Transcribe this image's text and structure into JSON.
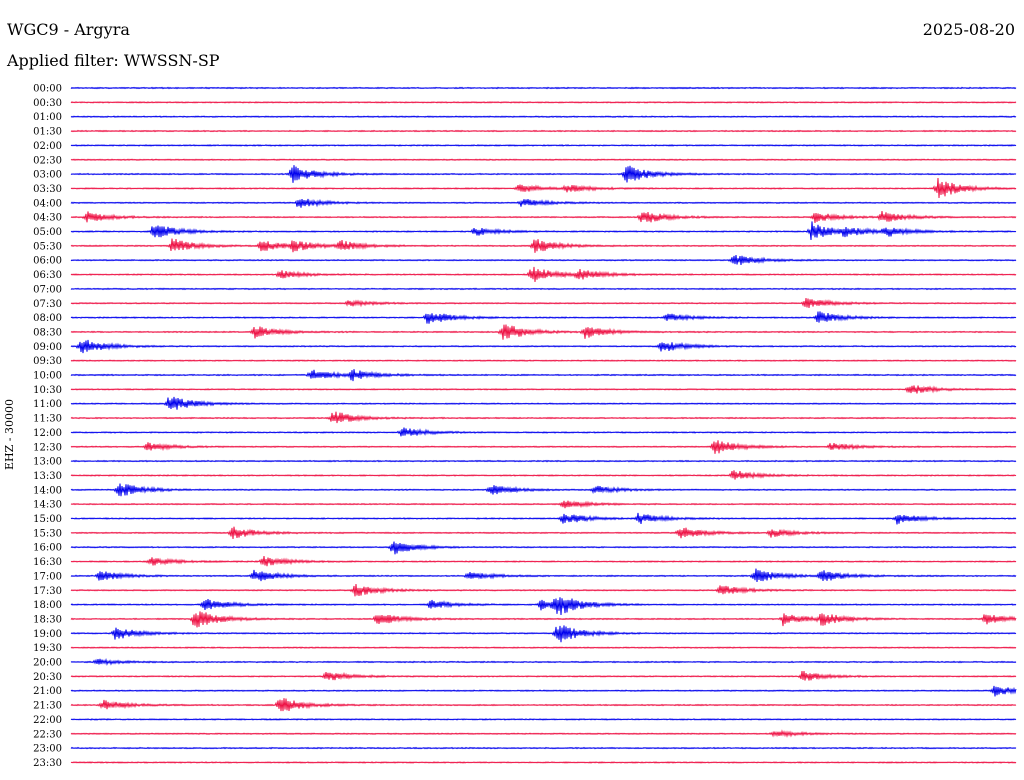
{
  "header": {
    "station": "WGC9 - Argyra",
    "date": "2025-08-20",
    "filter": "Applied filter: WWSSN-SP"
  },
  "chart_data": {
    "type": "line",
    "title": "WGC9 - Argyra",
    "ylabel": "EHZ - 30000",
    "y_tick_labels": [
      "00:00",
      "00:30",
      "01:00",
      "01:30",
      "02:00",
      "02:30",
      "03:00",
      "03:30",
      "04:00",
      "04:30",
      "05:00",
      "05:30",
      "06:00",
      "06:30",
      "07:00",
      "07:30",
      "08:00",
      "08:30",
      "09:00",
      "09:30",
      "10:00",
      "10:30",
      "11:00",
      "11:30",
      "12:00",
      "12:30",
      "13:00",
      "13:30",
      "14:00",
      "14:30",
      "15:00",
      "15:30",
      "16:00",
      "16:30",
      "17:00",
      "17:30",
      "18:00",
      "18:30",
      "19:00",
      "19:30",
      "20:00",
      "20:30",
      "21:00",
      "21:30",
      "22:00",
      "22:30",
      "23:00",
      "23:30"
    ],
    "x_range_minutes": [
      0,
      30
    ],
    "grid": false,
    "colors": {
      "even_rows": "#0000ee",
      "odd_rows": "#ee1144"
    },
    "events": [
      {
        "trace": "03:00",
        "minute": 7.0,
        "amplitude": 0.9
      },
      {
        "trace": "03:00",
        "minute": 17.6,
        "amplitude": 0.9
      },
      {
        "trace": "03:30",
        "minute": 14.2,
        "amplitude": 0.4
      },
      {
        "trace": "03:30",
        "minute": 15.7,
        "amplitude": 0.4
      },
      {
        "trace": "03:30",
        "minute": 27.5,
        "amplitude": 1.0
      },
      {
        "trace": "04:00",
        "minute": 7.2,
        "amplitude": 0.5
      },
      {
        "trace": "04:00",
        "minute": 14.3,
        "amplitude": 0.4
      },
      {
        "trace": "04:30",
        "minute": 0.5,
        "amplitude": 0.5
      },
      {
        "trace": "04:30",
        "minute": 18.1,
        "amplitude": 0.7
      },
      {
        "trace": "04:30",
        "minute": 23.6,
        "amplitude": 0.5
      },
      {
        "trace": "04:30",
        "minute": 25.7,
        "amplitude": 0.6
      },
      {
        "trace": "05:00",
        "minute": 2.6,
        "amplitude": 0.8
      },
      {
        "trace": "05:00",
        "minute": 12.8,
        "amplitude": 0.4
      },
      {
        "trace": "05:00",
        "minute": 23.5,
        "amplitude": 0.9
      },
      {
        "trace": "05:00",
        "minute": 24.5,
        "amplitude": 0.4
      },
      {
        "trace": "05:00",
        "minute": 25.8,
        "amplitude": 0.5
      },
      {
        "trace": "05:30",
        "minute": 3.2,
        "amplitude": 0.7
      },
      {
        "trace": "05:30",
        "minute": 6.0,
        "amplitude": 0.6
      },
      {
        "trace": "05:30",
        "minute": 7.0,
        "amplitude": 0.5
      },
      {
        "trace": "05:30",
        "minute": 8.5,
        "amplitude": 0.5
      },
      {
        "trace": "05:30",
        "minute": 14.7,
        "amplitude": 0.7
      },
      {
        "trace": "06:00",
        "minute": 21.0,
        "amplitude": 0.6
      },
      {
        "trace": "06:30",
        "minute": 6.6,
        "amplitude": 0.4
      },
      {
        "trace": "06:30",
        "minute": 14.6,
        "amplitude": 0.8
      },
      {
        "trace": "06:30",
        "minute": 16.1,
        "amplitude": 0.5
      },
      {
        "trace": "07:30",
        "minute": 8.8,
        "amplitude": 0.3
      },
      {
        "trace": "07:30",
        "minute": 23.3,
        "amplitude": 0.5
      },
      {
        "trace": "08:00",
        "minute": 11.3,
        "amplitude": 0.7
      },
      {
        "trace": "08:00",
        "minute": 18.9,
        "amplitude": 0.4
      },
      {
        "trace": "08:00",
        "minute": 23.7,
        "amplitude": 0.6
      },
      {
        "trace": "08:30",
        "minute": 5.8,
        "amplitude": 0.6
      },
      {
        "trace": "08:30",
        "minute": 13.7,
        "amplitude": 0.9
      },
      {
        "trace": "08:30",
        "minute": 16.3,
        "amplitude": 0.6
      },
      {
        "trace": "09:00",
        "minute": 0.3,
        "amplitude": 0.8
      },
      {
        "trace": "09:00",
        "minute": 18.7,
        "amplitude": 0.6
      },
      {
        "trace": "10:00",
        "minute": 7.6,
        "amplitude": 0.5
      },
      {
        "trace": "10:00",
        "minute": 8.9,
        "amplitude": 0.5
      },
      {
        "trace": "10:30",
        "minute": 26.6,
        "amplitude": 0.5
      },
      {
        "trace": "11:00",
        "minute": 3.1,
        "amplitude": 0.8
      },
      {
        "trace": "11:30",
        "minute": 8.3,
        "amplitude": 0.7
      },
      {
        "trace": "12:00",
        "minute": 10.5,
        "amplitude": 0.5
      },
      {
        "trace": "12:30",
        "minute": 2.4,
        "amplitude": 0.4
      },
      {
        "trace": "12:30",
        "minute": 20.4,
        "amplitude": 0.8
      },
      {
        "trace": "12:30",
        "minute": 24.1,
        "amplitude": 0.4
      },
      {
        "trace": "13:30",
        "minute": 21.0,
        "amplitude": 0.5
      },
      {
        "trace": "14:00",
        "minute": 1.5,
        "amplitude": 0.8
      },
      {
        "trace": "14:00",
        "minute": 13.3,
        "amplitude": 0.5
      },
      {
        "trace": "14:00",
        "minute": 16.6,
        "amplitude": 0.4
      },
      {
        "trace": "14:30",
        "minute": 15.6,
        "amplitude": 0.4
      },
      {
        "trace": "15:00",
        "minute": 15.6,
        "amplitude": 0.6
      },
      {
        "trace": "15:00",
        "minute": 18.0,
        "amplitude": 0.5
      },
      {
        "trace": "15:00",
        "minute": 26.2,
        "amplitude": 0.5
      },
      {
        "trace": "15:30",
        "minute": 5.1,
        "amplitude": 0.6
      },
      {
        "trace": "15:30",
        "minute": 19.3,
        "amplitude": 0.6
      },
      {
        "trace": "15:30",
        "minute": 22.2,
        "amplitude": 0.4
      },
      {
        "trace": "16:00",
        "minute": 10.2,
        "amplitude": 0.7
      },
      {
        "trace": "16:30",
        "minute": 2.5,
        "amplitude": 0.4
      },
      {
        "trace": "16:30",
        "minute": 6.1,
        "amplitude": 0.5
      },
      {
        "trace": "17:00",
        "minute": 0.9,
        "amplitude": 0.5
      },
      {
        "trace": "17:00",
        "minute": 5.8,
        "amplitude": 0.6
      },
      {
        "trace": "17:00",
        "minute": 12.6,
        "amplitude": 0.4
      },
      {
        "trace": "17:00",
        "minute": 21.7,
        "amplitude": 0.7
      },
      {
        "trace": "17:00",
        "minute": 23.8,
        "amplitude": 0.6
      },
      {
        "trace": "17:30",
        "minute": 9.0,
        "amplitude": 0.6
      },
      {
        "trace": "17:30",
        "minute": 20.6,
        "amplitude": 0.5
      },
      {
        "trace": "18:00",
        "minute": 4.2,
        "amplitude": 0.6
      },
      {
        "trace": "18:00",
        "minute": 11.4,
        "amplitude": 0.5
      },
      {
        "trace": "18:00",
        "minute": 14.9,
        "amplitude": 0.5
      },
      {
        "trace": "18:00",
        "minute": 15.4,
        "amplitude": 1.0
      },
      {
        "trace": "18:30",
        "minute": 3.9,
        "amplitude": 1.0
      },
      {
        "trace": "18:30",
        "minute": 9.7,
        "amplitude": 0.6
      },
      {
        "trace": "18:30",
        "minute": 22.6,
        "amplitude": 0.6
      },
      {
        "trace": "18:30",
        "minute": 23.8,
        "amplitude": 0.6
      },
      {
        "trace": "18:30",
        "minute": 29.0,
        "amplitude": 0.5
      },
      {
        "trace": "19:00",
        "minute": 1.4,
        "amplitude": 0.6
      },
      {
        "trace": "19:00",
        "minute": 15.4,
        "amplitude": 1.0
      },
      {
        "trace": "20:00",
        "minute": 0.8,
        "amplitude": 0.3
      },
      {
        "trace": "20:30",
        "minute": 8.1,
        "amplitude": 0.5
      },
      {
        "trace": "20:30",
        "minute": 23.2,
        "amplitude": 0.5
      },
      {
        "trace": "21:00",
        "minute": 29.3,
        "amplitude": 0.5
      },
      {
        "trace": "21:30",
        "minute": 1.0,
        "amplitude": 0.5
      },
      {
        "trace": "21:30",
        "minute": 6.6,
        "amplitude": 0.8
      },
      {
        "trace": "22:30",
        "minute": 22.3,
        "amplitude": 0.3
      }
    ]
  }
}
